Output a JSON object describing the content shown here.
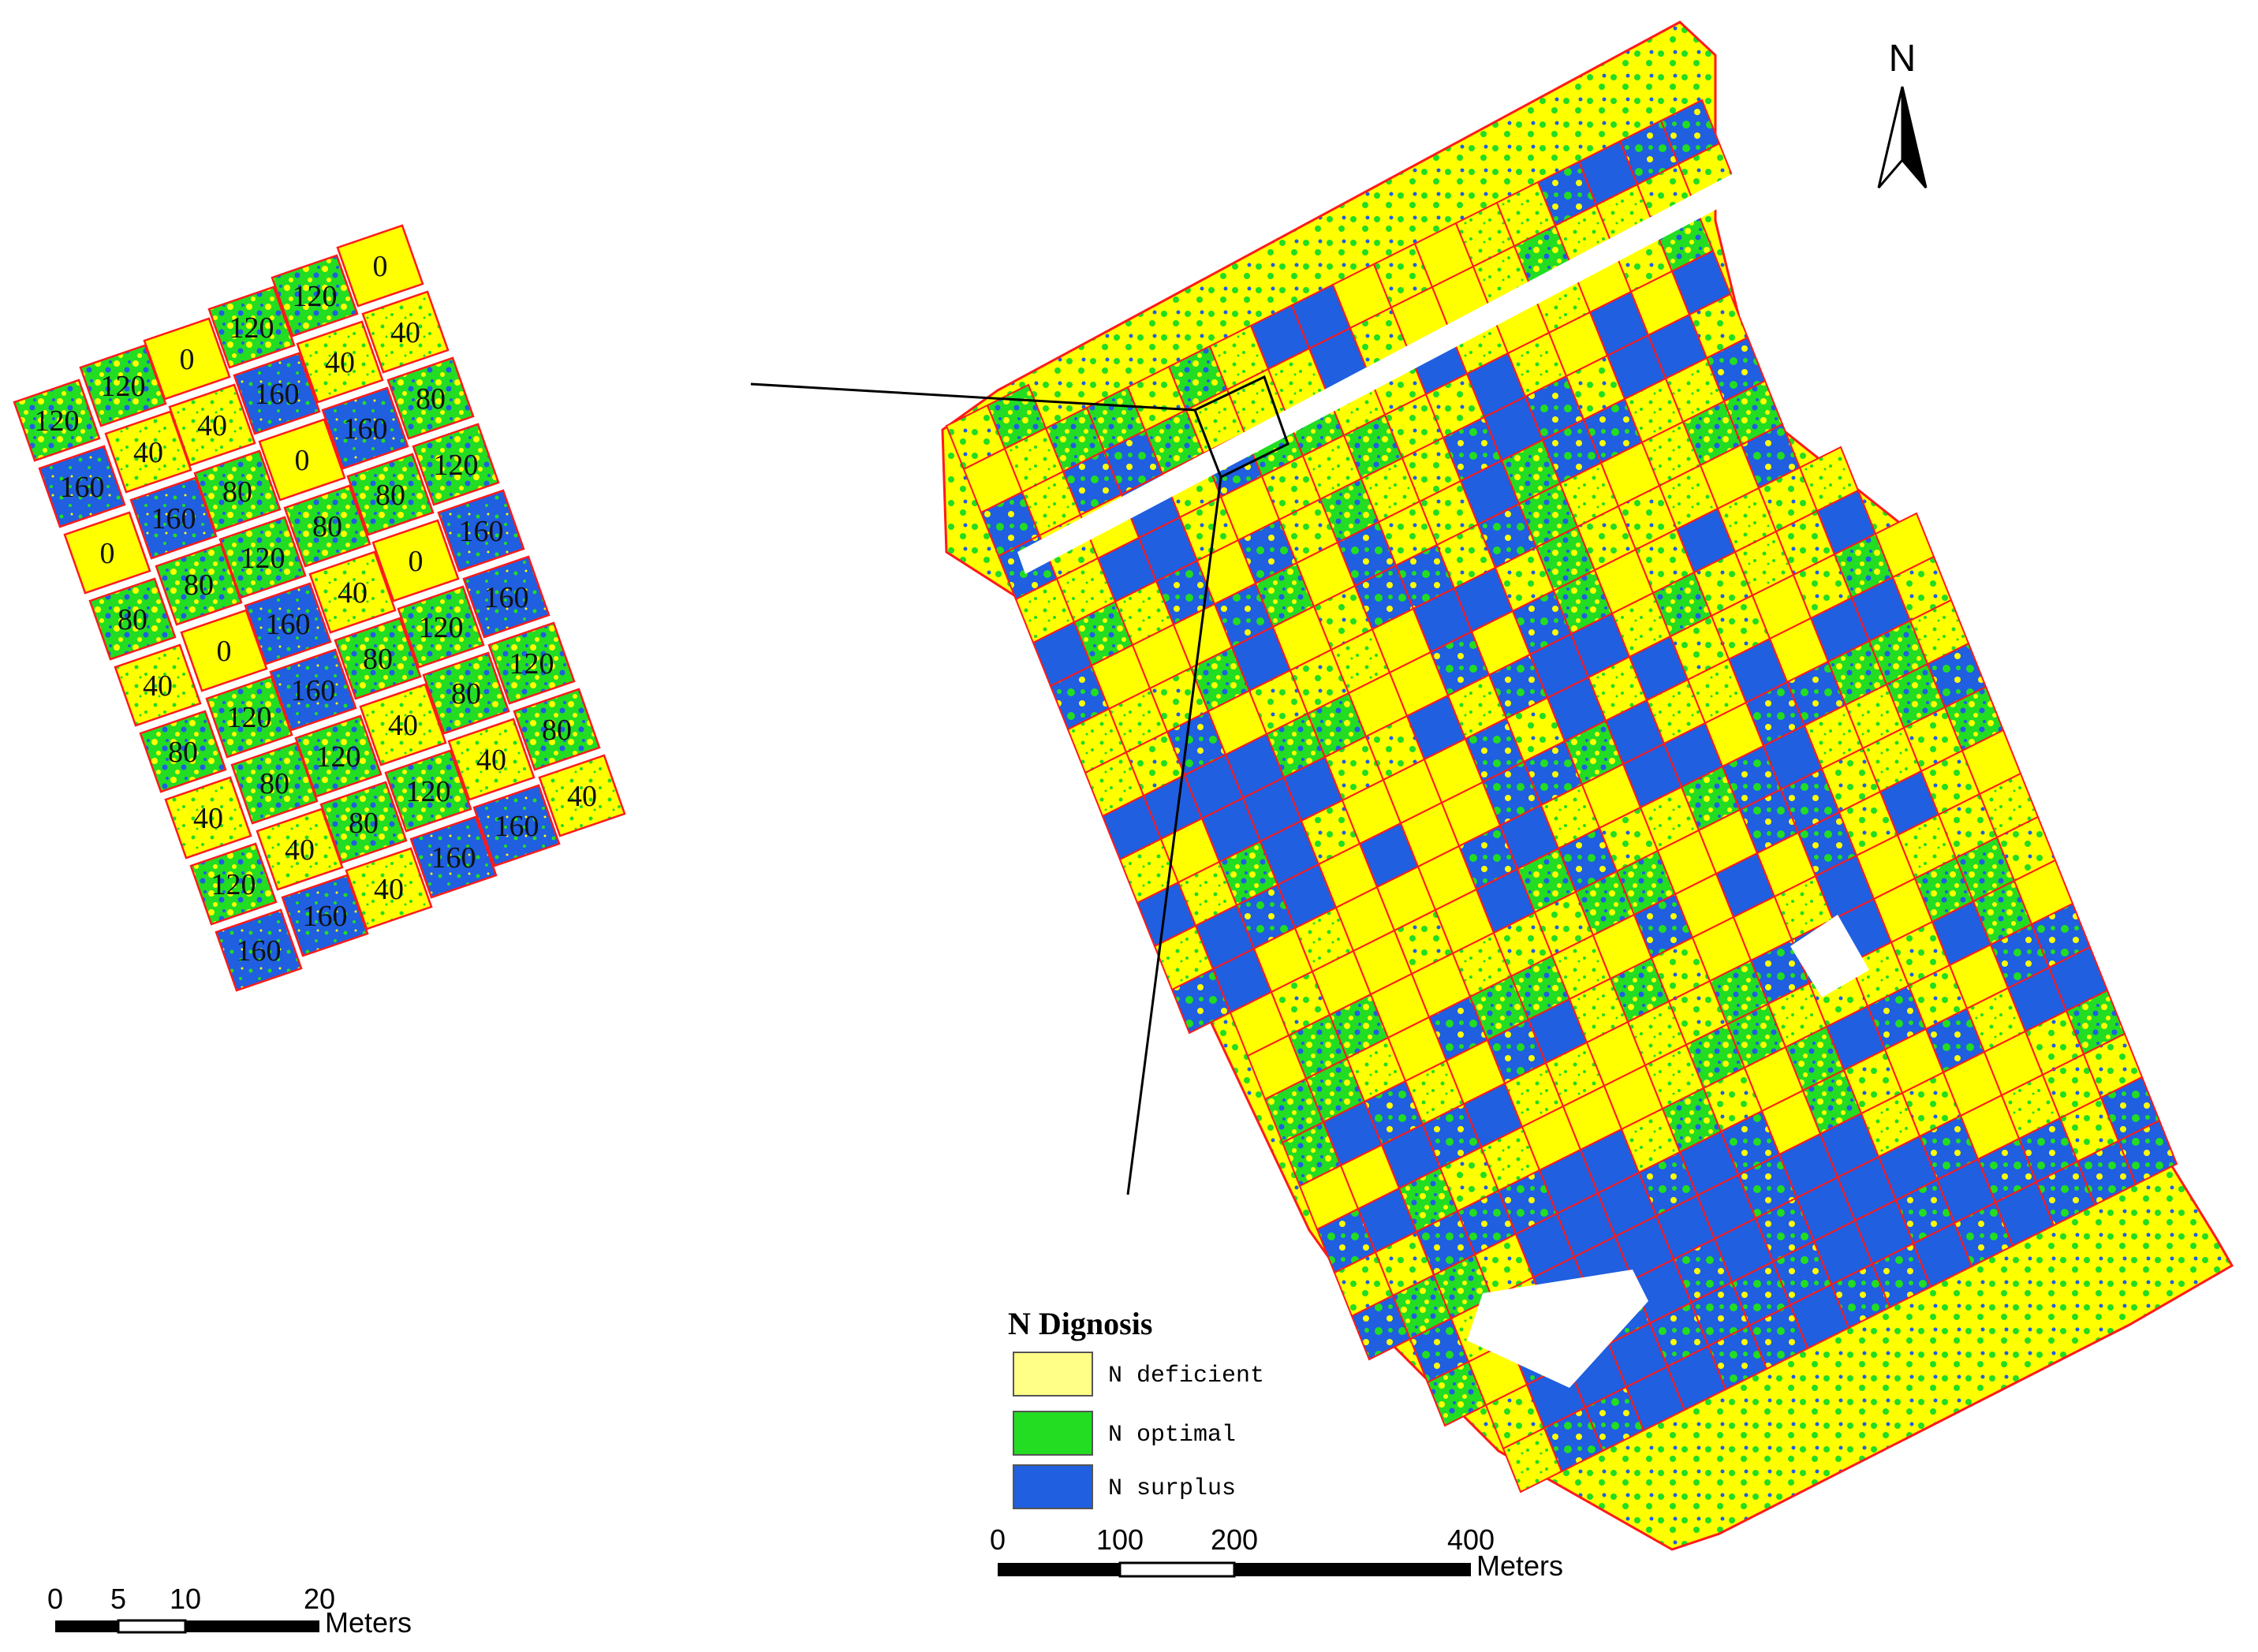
{
  "colors": {
    "deficient": "#ffff00",
    "optimal": "#22dd22",
    "surplus": "#1f5fe0",
    "boundary": "#ff1a1a",
    "pale_yellow": "#ffff88"
  },
  "north_arrow": {
    "label": "N",
    "icon": "north-arrow-icon"
  },
  "legend": {
    "title": "N Dignosis",
    "items": [
      {
        "label": "N deficient",
        "color": "#ffff88"
      },
      {
        "label": "N optimal",
        "color": "#22dd22"
      },
      {
        "label": "N surplus",
        "color": "#1f5fe0"
      }
    ]
  },
  "scale_small": {
    "ticks": [
      "0",
      "5",
      "10",
      "20"
    ],
    "unit": "Meters"
  },
  "scale_large": {
    "ticks": [
      "0",
      "100",
      "200",
      "400"
    ],
    "unit": "Meters"
  },
  "inset_plots": {
    "columns": [
      [
        "120",
        "160",
        "0",
        "80",
        "40",
        "80",
        "40",
        "120",
        "160"
      ],
      [
        "120",
        "40",
        "160",
        "80",
        "0",
        "120",
        "80",
        "40",
        "160"
      ],
      [
        "0",
        "40",
        "80",
        "120",
        "160",
        "160",
        "120",
        "80",
        "40"
      ],
      [
        "120",
        "160",
        "0",
        "80",
        "40",
        "80",
        "40",
        "120",
        "160"
      ],
      [
        "120",
        "40",
        "160",
        "80",
        "0",
        "120",
        "80",
        "40",
        "160"
      ],
      [
        "0",
        "40",
        "80",
        "120",
        "160",
        "160",
        "120",
        "80",
        "40"
      ]
    ]
  }
}
